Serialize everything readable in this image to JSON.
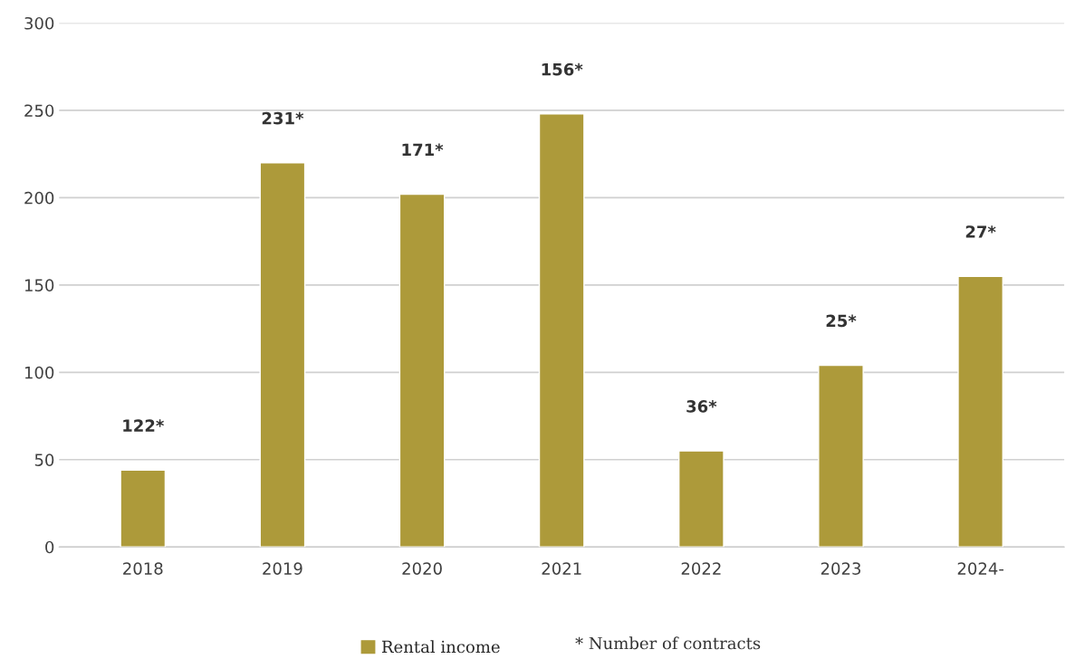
{
  "chart_data": {
    "type": "bar",
    "categories": [
      "2018",
      "2019",
      "2020",
      "2021",
      "2022",
      "2023",
      "2024-"
    ],
    "series": [
      {
        "name": "Rental income",
        "color": "#ad9a3a",
        "values": [
          44,
          220,
          202,
          248,
          55,
          104,
          155
        ]
      }
    ],
    "ylim": [
      0,
      300
    ],
    "yticks": [
      0,
      50,
      100,
      150,
      200,
      250,
      300
    ],
    "grid": "y",
    "legend": "bottom",
    "annotations": [
      {
        "text": "122*",
        "x": "2018",
        "y": 44
      },
      {
        "text": "231*",
        "x": "2019",
        "y": 220
      },
      {
        "text": "171*",
        "x": "2020",
        "y": 202
      },
      {
        "text": "156*",
        "x": "2021",
        "y": 248
      },
      {
        "text": "36*",
        "x": "2022",
        "y": 55
      },
      {
        "text": "25*",
        "x": "2023",
        "y": 104
      },
      {
        "text": "27*",
        "x": "2024-",
        "y": 155
      },
      "* Number of contracts"
    ]
  }
}
